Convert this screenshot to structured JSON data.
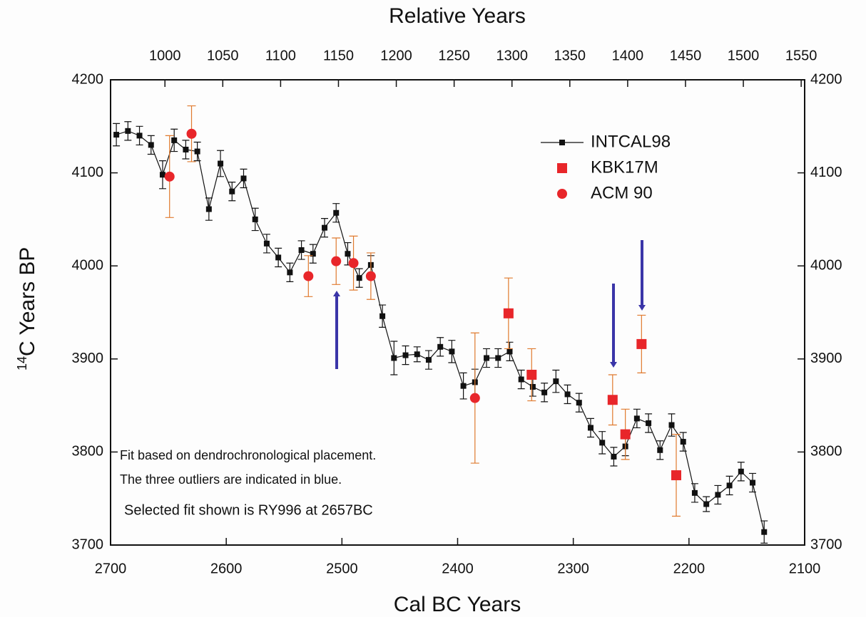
{
  "chart_data": {
    "type": "scatter",
    "x_label": "Cal BC Years",
    "x2_label": "Relative Years",
    "y_label_sup": "14",
    "y_label": "C Years BP",
    "xlim": [
      2700,
      2100
    ],
    "xticks": [
      2700,
      2600,
      2500,
      2400,
      2300,
      2200,
      2100
    ],
    "x2lim": [
      953,
      1553
    ],
    "x2ticks": [
      1000,
      1050,
      1100,
      1150,
      1200,
      1250,
      1300,
      1350,
      1400,
      1450,
      1500,
      1550
    ],
    "ylim": [
      3700,
      4200
    ],
    "yticks": [
      3700,
      3800,
      3900,
      4000,
      4100,
      4200
    ],
    "y2lim": [
      3700,
      4200
    ],
    "y2ticks": [
      3700,
      3800,
      3900,
      4000,
      4100,
      4200
    ],
    "legend": "upper right",
    "annotations": [
      "Fit based on dendrochronological placement.",
      "The three outliers are indicated in blue.",
      "Selected fit shown is RY996 at 2657BC"
    ],
    "series": [
      {
        "name": "INTCAL98",
        "color": "#111111",
        "error_color": "#111111",
        "marker": "square",
        "line": true,
        "x": [
          2695,
          2685,
          2675,
          2665,
          2655,
          2645,
          2635,
          2625,
          2615,
          2605,
          2595,
          2585,
          2575,
          2565,
          2555,
          2545,
          2535,
          2525,
          2515,
          2505,
          2495,
          2485,
          2475,
          2465,
          2455,
          2445,
          2435,
          2425,
          2415,
          2405,
          2395,
          2385,
          2375,
          2365,
          2355,
          2345,
          2335,
          2325,
          2315,
          2305,
          2295,
          2285,
          2275,
          2265,
          2255,
          2245,
          2235,
          2225,
          2215,
          2205,
          2195,
          2185,
          2175,
          2165,
          2155,
          2145,
          2135
        ],
        "values": [
          4141,
          4145,
          4140,
          4130,
          4098,
          4135,
          4125,
          4123,
          4061,
          4110,
          4080,
          4094,
          4050,
          4024,
          4009,
          3993,
          4017,
          4013,
          4041,
          4057,
          4013,
          3987,
          4001,
          3946,
          3901,
          3904,
          3905,
          3899,
          3913,
          3908,
          3871,
          3875,
          3901,
          3901,
          3908,
          3878,
          3870,
          3864,
          3876,
          3862,
          3853,
          3826,
          3810,
          3795,
          3806,
          3836,
          3831,
          3802,
          3829,
          3811,
          3756,
          3744,
          3754,
          3764,
          3779,
          3767,
          3714
        ],
        "errors": [
          12,
          10,
          10,
          10,
          15,
          12,
          10,
          10,
          12,
          14,
          10,
          10,
          12,
          10,
          10,
          10,
          10,
          10,
          10,
          10,
          12,
          10,
          10,
          12,
          18,
          10,
          8,
          10,
          10,
          12,
          14,
          14,
          10,
          10,
          10,
          10,
          10,
          10,
          12,
          10,
          10,
          10,
          12,
          10,
          10,
          10,
          10,
          10,
          12,
          10,
          10,
          8,
          10,
          10,
          10,
          10,
          12
        ]
      },
      {
        "name": "KBK17M",
        "color": "#e8262a",
        "error_color": "#e07a2e",
        "marker": "square",
        "line": false,
        "x": [
          2356,
          2336,
          2266,
          2255,
          2241,
          2211
        ],
        "values": [
          3949,
          3883,
          3856,
          3819,
          3916,
          3775
        ],
        "errors": [
          38,
          28,
          27,
          27,
          31,
          44
        ]
      },
      {
        "name": "ACM 90",
        "color": "#e8262a",
        "error_color": "#e07a2e",
        "marker": "circle",
        "line": false,
        "x": [
          2649,
          2630,
          2529,
          2505,
          2490,
          2475,
          2385
        ],
        "values": [
          4096,
          4142,
          3989,
          4005,
          4003,
          3989,
          3858
        ],
        "errors": [
          44,
          30,
          22,
          25,
          29,
          25,
          70
        ]
      }
    ]
  }
}
